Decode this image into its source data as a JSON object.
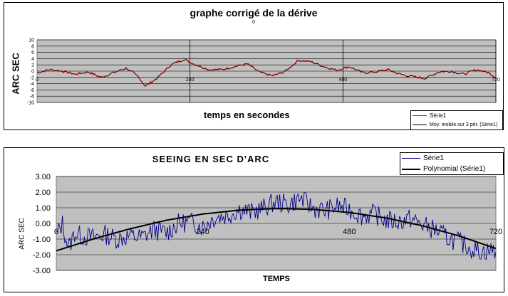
{
  "chart_data": [
    {
      "type": "line",
      "title": "graphe corrigé de la dérive",
      "subtitle": "0",
      "xlabel": "temps en secondes",
      "ylabel": "ARC SEC",
      "xlim": [
        0,
        720
      ],
      "ylim": [
        -10,
        10
      ],
      "yticks": [
        10,
        8,
        6,
        4,
        2,
        0,
        -2,
        -4,
        -6,
        -8,
        -10
      ],
      "xtick_labels": [
        {
          "x": 0,
          "label": "0"
        },
        {
          "x": 240,
          "label": "240"
        },
        {
          "x": 480,
          "label": "480"
        },
        {
          "x": 720,
          "label": "720"
        }
      ],
      "grid": true,
      "legend_position": "bottom-right",
      "series": [
        {
          "name": "Série1",
          "color": "#ff0000"
        },
        {
          "name": "Moy. mobile sur 3 pér. (Série1)",
          "color": "#000000"
        }
      ],
      "x": [
        0,
        20,
        40,
        60,
        80,
        100,
        120,
        140,
        160,
        170,
        190,
        210,
        230,
        250,
        270,
        290,
        310,
        330,
        350,
        370,
        390,
        410,
        430,
        450,
        470,
        490,
        510,
        530,
        550,
        570,
        590,
        610,
        630,
        650,
        670,
        690,
        710,
        720
      ],
      "values": [
        -0.5,
        0.5,
        0.0,
        -1.0,
        -0.2,
        -2.0,
        -0.5,
        1.0,
        -2.0,
        -4.8,
        -2.0,
        2.0,
        3.8,
        2.0,
        0.5,
        0.5,
        1.5,
        2.3,
        -0.5,
        -1.5,
        0.0,
        3.5,
        3.0,
        1.5,
        0.3,
        1.5,
        -0.5,
        -0.3,
        0.5,
        -1.0,
        -1.8,
        -2.3,
        -0.2,
        0.0,
        -1.0,
        0.5,
        -0.6,
        -2.0
      ]
    },
    {
      "type": "line",
      "title": "SEEING EN SEC D'ARC",
      "xlabel": "TEMPS",
      "ylabel": "ARC SEC",
      "xlim": [
        0,
        720
      ],
      "ylim": [
        -3,
        3
      ],
      "ytick_labels": [
        "3.00",
        "2.00",
        "1.00",
        "0.00",
        "-1.00",
        "-2.00",
        "-3.00"
      ],
      "xtick_labels": [
        {
          "x": 0,
          "label": "0"
        },
        {
          "x": 240,
          "label": "240"
        },
        {
          "x": 480,
          "label": "480"
        },
        {
          "x": 720,
          "label": "720"
        }
      ],
      "grid": true,
      "legend_position": "top-right",
      "series": [
        {
          "name": "Série1",
          "color": "#00008b"
        },
        {
          "name": "Polynomial (Série1)",
          "color": "#000000",
          "trend_x": [
            0,
            60,
            120,
            180,
            240,
            300,
            360,
            420,
            480,
            540,
            600,
            660,
            720
          ],
          "trend_y": [
            -1.75,
            -1.0,
            -0.35,
            0.2,
            0.6,
            0.85,
            0.95,
            0.9,
            0.7,
            0.35,
            -0.15,
            -0.8,
            -1.6
          ]
        }
      ],
      "x": [
        0,
        10,
        20,
        30,
        40,
        60,
        80,
        100,
        120,
        140,
        160,
        180,
        200,
        220,
        240,
        260,
        280,
        300,
        320,
        340,
        360,
        380,
        400,
        420,
        440,
        460,
        480,
        500,
        520,
        540,
        560,
        580,
        600,
        620,
        640,
        660,
        680,
        700,
        720
      ],
      "values": [
        -0.8,
        0.0,
        -1.6,
        -0.6,
        -0.8,
        -0.9,
        -0.7,
        -1.0,
        -0.8,
        -0.9,
        -0.4,
        -0.6,
        0.0,
        0.1,
        -0.2,
        0.4,
        0.5,
        0.9,
        0.7,
        1.0,
        1.4,
        1.2,
        1.6,
        1.0,
        0.8,
        1.1,
        0.9,
        0.5,
        0.6,
        0.2,
        0.1,
        0.3,
        -0.1,
        -0.4,
        -0.9,
        -1.2,
        -1.6,
        -1.8,
        -1.7
      ]
    }
  ]
}
